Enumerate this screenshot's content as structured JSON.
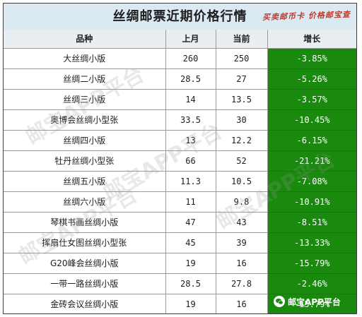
{
  "title": "丝绸邮票近期价格行情",
  "stamp_text": "买卖邮币卡 价格邮宝查",
  "watermark_text": "邮宝APP平台",
  "brand_label": "邮宝APP平台",
  "brand_icon": "wechat-icon",
  "colors": {
    "growth_bg": "#1a8a0f",
    "title_bg": "#dbe9f3",
    "stamp": "#c0392b"
  },
  "table": {
    "headers": [
      "品种",
      "上月",
      "当前",
      "增长"
    ],
    "rows": [
      {
        "name": "大丝绸小版",
        "last": "260",
        "current": "250",
        "growth": "-3.85%"
      },
      {
        "name": "丝绸二小版",
        "last": "28.5",
        "current": "27",
        "growth": "-5.26%"
      },
      {
        "name": "丝绸三小版",
        "last": "14",
        "current": "13.5",
        "growth": "-3.57%"
      },
      {
        "name": "奥博会丝绸小型张",
        "last": "33.5",
        "current": "30",
        "growth": "-10.45%"
      },
      {
        "name": "丝绸四小版",
        "last": "13",
        "current": "12.2",
        "growth": "-6.15%"
      },
      {
        "name": "牡丹丝绸小型张",
        "last": "66",
        "current": "52",
        "growth": "-21.21%"
      },
      {
        "name": "丝绸五小版",
        "last": "11.3",
        "current": "10.5",
        "growth": "-7.08%"
      },
      {
        "name": "丝绸六小版",
        "last": "11",
        "current": "9.8",
        "growth": "-10.91%"
      },
      {
        "name": "琴棋书画丝绸小版",
        "last": "47",
        "current": "43",
        "growth": "-8.51%"
      },
      {
        "name": "挥扇仕女图丝绸小型张",
        "last": "45",
        "current": "39",
        "growth": "-13.33%"
      },
      {
        "name": "G20峰会丝绸小版",
        "last": "19",
        "current": "16",
        "growth": "-15.79%"
      },
      {
        "name": "一带一路丝绸小版",
        "last": "28.5",
        "current": "27.8",
        "growth": "-2.46%"
      },
      {
        "name": "金砖会议丝绸小版",
        "last": "19",
        "current": "16",
        "growth": "-15.79%"
      }
    ]
  }
}
